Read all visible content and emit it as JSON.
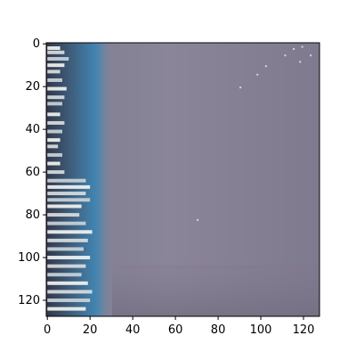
{
  "image_plot": {
    "type": "image",
    "x_ticks": [
      "0",
      "20",
      "40",
      "60",
      "80",
      "100",
      "120"
    ],
    "y_ticks": [
      "0",
      "20",
      "40",
      "60",
      "80",
      "100",
      "120"
    ],
    "x_tick_values": [
      0,
      20,
      40,
      60,
      80,
      100,
      120
    ],
    "y_tick_values": [
      0,
      20,
      40,
      60,
      80,
      100,
      120
    ],
    "xlim": [
      -0.5,
      127.5
    ],
    "ylim": [
      127.5,
      -0.5
    ],
    "image_size": [
      128,
      128
    ],
    "description_colors": {
      "water": "#827c91",
      "water_light": "#8e8598",
      "shore_dark": "#3d4250",
      "shore_blue": "#3f86b4",
      "boats": "#e9ecec",
      "pier_band": "#796f83",
      "axes_edge": "#000000"
    }
  }
}
